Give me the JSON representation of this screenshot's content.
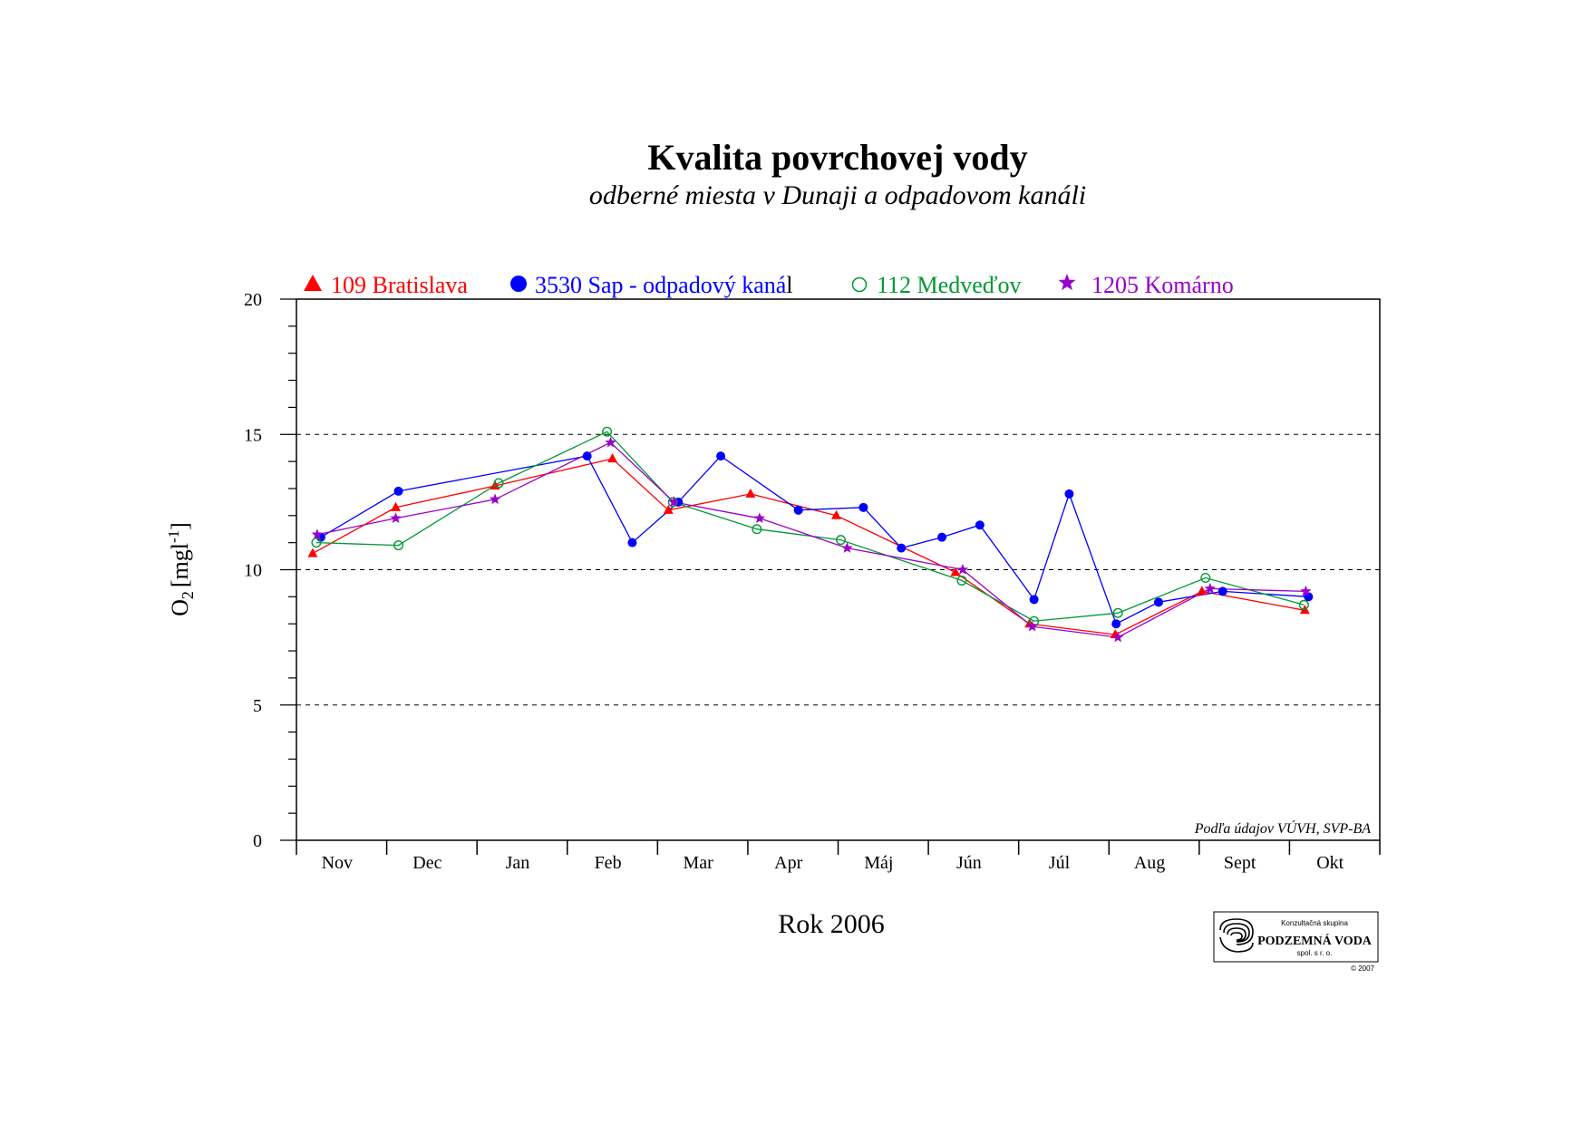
{
  "chart_data": {
    "type": "line",
    "title": "Kvalita povrchovej vody",
    "subtitle": "odberné miesta v Dunaji a odpadovom kanáli",
    "xlabel": "Rok 2006",
    "ylabel_main": "O",
    "ylabel_sub": "2",
    "ylabel_unit": "[mgl",
    "ylabel_sup": "-1",
    "ylabel_close": "]",
    "ylim": [
      0,
      20
    ],
    "yticks": [
      0,
      5,
      10,
      15,
      20
    ],
    "grid": "dashed horizontal at 5, 10, 15",
    "legend_position": "top",
    "x_range": [
      0,
      12
    ],
    "categories": [
      "Nov",
      "Dec",
      "Jan",
      "Feb",
      "Mar",
      "Apr",
      "Máj",
      "Jún",
      "Júl",
      "Aug",
      "Sept",
      "Okt"
    ],
    "source_note": "Podľa údajov VÚVH, SVP-BA",
    "series": [
      {
        "name": "109 Bratislava",
        "color": "#ff0000",
        "marker": "triangle",
        "points": [
          [
            0.18,
            10.6
          ],
          [
            1.1,
            12.3
          ],
          [
            2.2,
            13.1
          ],
          [
            3.5,
            14.1
          ],
          [
            4.12,
            12.2
          ],
          [
            5.03,
            12.8
          ],
          [
            5.98,
            12.0
          ],
          [
            7.3,
            9.9
          ],
          [
            8.12,
            8.0
          ],
          [
            9.07,
            7.6
          ],
          [
            10.03,
            9.2
          ],
          [
            11.17,
            8.5
          ]
        ]
      },
      {
        "name": "3530 Sap - odpadový kanál",
        "color": "#0000ff",
        "marker": "circle",
        "points": [
          [
            0.27,
            11.2
          ],
          [
            1.13,
            12.9
          ],
          [
            3.22,
            14.2
          ],
          [
            3.72,
            11.0
          ],
          [
            4.23,
            12.5
          ],
          [
            4.7,
            14.2
          ],
          [
            5.56,
            12.2
          ],
          [
            6.28,
            12.3
          ],
          [
            6.7,
            10.8
          ],
          [
            7.15,
            11.2
          ],
          [
            7.57,
            11.65
          ],
          [
            8.17,
            8.9
          ],
          [
            8.56,
            12.8
          ],
          [
            9.08,
            8.0
          ],
          [
            9.55,
            8.8
          ],
          [
            10.26,
            9.2
          ],
          [
            11.21,
            9.0
          ]
        ]
      },
      {
        "name": "112 Medveďov",
        "color": "#009933",
        "marker": "circle-open",
        "points": [
          [
            0.22,
            11.0
          ],
          [
            1.13,
            10.9
          ],
          [
            2.24,
            13.2
          ],
          [
            3.44,
            15.1
          ],
          [
            4.17,
            12.5
          ],
          [
            5.1,
            11.5
          ],
          [
            6.03,
            11.1
          ],
          [
            7.37,
            9.6
          ],
          [
            8.17,
            8.1
          ],
          [
            9.1,
            8.4
          ],
          [
            10.07,
            9.7
          ],
          [
            11.16,
            8.7
          ]
        ]
      },
      {
        "name": "1205 Komárno",
        "color": "#9900cc",
        "marker": "star",
        "points": [
          [
            0.23,
            11.3
          ],
          [
            1.1,
            11.9
          ],
          [
            2.2,
            12.6
          ],
          [
            3.48,
            14.7
          ],
          [
            4.18,
            12.5
          ],
          [
            5.13,
            11.9
          ],
          [
            6.1,
            10.8
          ],
          [
            7.38,
            10.0
          ],
          [
            8.15,
            7.9
          ],
          [
            9.1,
            7.5
          ],
          [
            10.12,
            9.3
          ],
          [
            11.18,
            9.2
          ]
        ]
      }
    ]
  },
  "legend": {
    "bratislava": "109 Bratislava",
    "sap_prefix": "3530 Sap - odpadový kaná",
    "sap_suffix": "l",
    "medvedov": "112 Medveďov",
    "komarno": "1205 Komárno"
  },
  "logo": {
    "line1": "Konzultačná skupina",
    "line2": "PODZEMNÁ VODA",
    "line3": "spol. s r. o.",
    "copyright": "© 2007"
  },
  "colors": {
    "bratislava": "#ff0000",
    "sap": "#0000ff",
    "medvedov": "#009933",
    "komarno": "#9900cc"
  }
}
